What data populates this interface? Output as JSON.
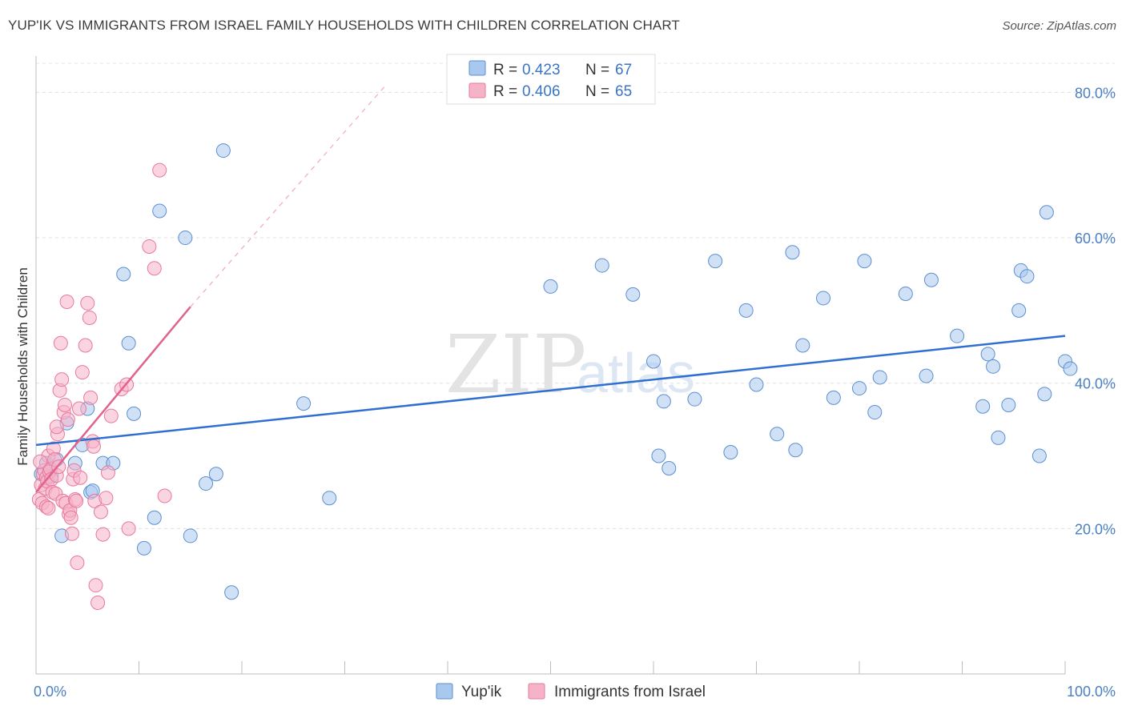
{
  "header": {
    "title": "YUP'IK VS IMMIGRANTS FROM ISRAEL FAMILY HOUSEHOLDS WITH CHILDREN CORRELATION CHART",
    "source": "Source: ZipAtlas.com"
  },
  "watermark": {
    "zip": "ZIP",
    "atlas": "atlas"
  },
  "chart_data": {
    "type": "scatter",
    "ylabel": "Family Households with Children",
    "xlim": [
      0,
      100
    ],
    "ylim": [
      0,
      85
    ],
    "x_tick_labels": [
      {
        "value": 0,
        "label": "0.0%"
      },
      {
        "value": 100,
        "label": "100.0%"
      }
    ],
    "y_ticks": [
      {
        "value": 20,
        "label": "20.0%"
      },
      {
        "value": 40,
        "label": "40.0%"
      },
      {
        "value": 60,
        "label": "60.0%"
      },
      {
        "value": 80,
        "label": "80.0%"
      }
    ],
    "grid": true,
    "legend_top": {
      "placement": "top-center",
      "rows": [
        {
          "r_label": "R = ",
          "r_value": "0.423",
          "n_label": "N = ",
          "n_value": "67",
          "color": "#a9c8ee"
        },
        {
          "r_label": "R = ",
          "r_value": "0.406",
          "n_label": "N = ",
          "n_value": "65",
          "color": "#f5b3c8"
        }
      ]
    },
    "series": [
      {
        "name": "Yup'ik",
        "color": "#a9c8ee",
        "stroke": "#5b8fd1",
        "trend_color": "#2f6fcf",
        "trend": {
          "x0": 0,
          "y0": 31.5,
          "x1": 100,
          "y1": 46.5
        },
        "points": [
          [
            0.5,
            27.5
          ],
          [
            1.0,
            29.0
          ],
          [
            1.3,
            28.0
          ],
          [
            1.5,
            27.2
          ],
          [
            2.0,
            29.5
          ],
          [
            2.5,
            19.0
          ],
          [
            3.0,
            34.5
          ],
          [
            3.8,
            29.0
          ],
          [
            4.5,
            31.5
          ],
          [
            5.0,
            36.5
          ],
          [
            5.3,
            25.0
          ],
          [
            5.5,
            25.2
          ],
          [
            6.5,
            29.0
          ],
          [
            7.5,
            29.0
          ],
          [
            8.5,
            55.0
          ],
          [
            9.0,
            45.5
          ],
          [
            9.5,
            35.8
          ],
          [
            10.5,
            17.3
          ],
          [
            11.5,
            21.5
          ],
          [
            12.0,
            63.7
          ],
          [
            14.5,
            60.0
          ],
          [
            15.0,
            19.0
          ],
          [
            16.5,
            26.2
          ],
          [
            17.5,
            27.5
          ],
          [
            18.2,
            72.0
          ],
          [
            19.0,
            11.2
          ],
          [
            26.0,
            37.2
          ],
          [
            28.5,
            24.2
          ],
          [
            50.0,
            53.3
          ],
          [
            55.0,
            56.2
          ],
          [
            58.0,
            52.2
          ],
          [
            60.0,
            43.0
          ],
          [
            60.5,
            30.0
          ],
          [
            61.0,
            37.5
          ],
          [
            61.5,
            28.3
          ],
          [
            64.0,
            37.8
          ],
          [
            66.0,
            56.8
          ],
          [
            67.5,
            30.5
          ],
          [
            69.0,
            50.0
          ],
          [
            70.0,
            39.8
          ],
          [
            72.0,
            33.0
          ],
          [
            73.5,
            58.0
          ],
          [
            73.8,
            30.8
          ],
          [
            74.5,
            45.2
          ],
          [
            76.5,
            51.7
          ],
          [
            77.5,
            38.0
          ],
          [
            80.0,
            39.3
          ],
          [
            80.5,
            56.8
          ],
          [
            81.5,
            36.0
          ],
          [
            82.0,
            40.8
          ],
          [
            84.5,
            52.3
          ],
          [
            86.5,
            41.0
          ],
          [
            87.0,
            54.2
          ],
          [
            89.5,
            46.5
          ],
          [
            92.0,
            36.8
          ],
          [
            92.5,
            44.0
          ],
          [
            93.0,
            42.3
          ],
          [
            93.5,
            32.5
          ],
          [
            94.5,
            37.0
          ],
          [
            95.5,
            50.0
          ],
          [
            95.7,
            55.5
          ],
          [
            96.3,
            54.7
          ],
          [
            97.5,
            30.0
          ],
          [
            98.0,
            38.5
          ],
          [
            98.2,
            63.5
          ],
          [
            100.0,
            43.0
          ],
          [
            100.5,
            42.0
          ]
        ]
      },
      {
        "name": "Immigrants from Israel",
        "color": "#f5b3c8",
        "stroke": "#e8799c",
        "trend_color": "#e0628f",
        "trend": {
          "x0": 0,
          "y0": 25.0,
          "x1": 15,
          "y1": 50.5
        },
        "trend_dashed": {
          "x0": 15,
          "y0": 50.5,
          "x1": 34,
          "y1": 81.0
        },
        "points": [
          [
            0.3,
            24.0
          ],
          [
            0.5,
            26.0
          ],
          [
            0.6,
            23.5
          ],
          [
            0.7,
            27.5
          ],
          [
            0.8,
            28.0
          ],
          [
            0.9,
            25.5
          ],
          [
            1.0,
            27.0
          ],
          [
            1.1,
            26.5
          ],
          [
            1.2,
            30.0
          ],
          [
            1.3,
            27.8
          ],
          [
            1.4,
            28.2
          ],
          [
            1.5,
            26.8
          ],
          [
            1.6,
            25.0
          ],
          [
            1.7,
            31.0
          ],
          [
            1.8,
            29.5
          ],
          [
            1.9,
            24.8
          ],
          [
            2.0,
            27.3
          ],
          [
            2.1,
            33.0
          ],
          [
            2.2,
            28.5
          ],
          [
            2.3,
            39.0
          ],
          [
            2.4,
            45.5
          ],
          [
            2.5,
            40.5
          ],
          [
            2.6,
            23.8
          ],
          [
            2.7,
            36.0
          ],
          [
            2.8,
            37.0
          ],
          [
            2.9,
            23.5
          ],
          [
            3.0,
            51.2
          ],
          [
            3.1,
            35.0
          ],
          [
            3.2,
            22.0
          ],
          [
            3.3,
            22.5
          ],
          [
            3.5,
            19.3
          ],
          [
            3.6,
            26.8
          ],
          [
            3.7,
            28.0
          ],
          [
            3.8,
            24.0
          ],
          [
            3.9,
            23.8
          ],
          [
            4.0,
            15.3
          ],
          [
            4.2,
            36.5
          ],
          [
            4.5,
            41.5
          ],
          [
            4.8,
            45.2
          ],
          [
            5.0,
            51.0
          ],
          [
            5.2,
            49.0
          ],
          [
            5.3,
            38.0
          ],
          [
            5.5,
            32.0
          ],
          [
            5.6,
            31.3
          ],
          [
            5.7,
            23.8
          ],
          [
            5.8,
            12.2
          ],
          [
            6.0,
            9.8
          ],
          [
            6.3,
            22.3
          ],
          [
            6.5,
            19.2
          ],
          [
            7.0,
            27.7
          ],
          [
            7.3,
            35.5
          ],
          [
            8.3,
            39.2
          ],
          [
            8.8,
            39.8
          ],
          [
            9.0,
            20.0
          ],
          [
            11.0,
            58.8
          ],
          [
            11.5,
            55.8
          ],
          [
            12.0,
            69.3
          ],
          [
            12.5,
            24.5
          ],
          [
            0.4,
            29.2
          ],
          [
            1.0,
            23.0
          ],
          [
            2.0,
            34.0
          ],
          [
            3.4,
            21.5
          ],
          [
            4.3,
            27.0
          ],
          [
            6.8,
            24.2
          ],
          [
            1.2,
            22.8
          ]
        ]
      }
    ]
  },
  "bottom_legend": {
    "items": [
      {
        "label": "Yup'ik",
        "color": "#a9c8ee"
      },
      {
        "label": "Immigrants from Israel",
        "color": "#f5b3c8"
      }
    ]
  }
}
